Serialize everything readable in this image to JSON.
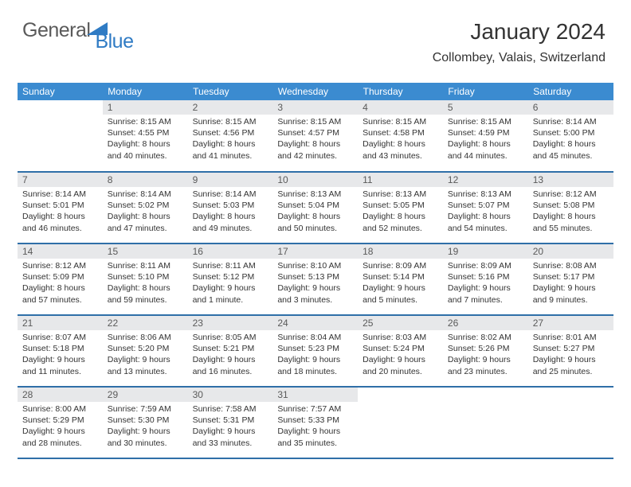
{
  "logo": {
    "text1": "General",
    "text2": "Blue",
    "shape_color": "#2f7bc4",
    "text1_color": "#5a5a5a"
  },
  "header": {
    "title": "January 2024",
    "location": "Collombey, Valais, Switzerland"
  },
  "style": {
    "header_bg": "#3b8bd0",
    "header_text": "#ffffff",
    "border_color": "#2f6fa8",
    "daynum_bg": "#e7e8ea",
    "daynum_color": "#5a5a5a",
    "body_text": "#333333",
    "background": "#ffffff",
    "th_fontsize": 12,
    "daynum_fontsize": 12,
    "data_fontsize": 10.5,
    "title_fontsize": 28,
    "location_fontsize": 16
  },
  "weekdays": [
    "Sunday",
    "Monday",
    "Tuesday",
    "Wednesday",
    "Thursday",
    "Friday",
    "Saturday"
  ],
  "grid_start_offset": 1,
  "days": [
    {
      "n": 1,
      "sunrise": "8:15 AM",
      "sunset": "4:55 PM",
      "daylight": "8 hours and 40 minutes."
    },
    {
      "n": 2,
      "sunrise": "8:15 AM",
      "sunset": "4:56 PM",
      "daylight": "8 hours and 41 minutes."
    },
    {
      "n": 3,
      "sunrise": "8:15 AM",
      "sunset": "4:57 PM",
      "daylight": "8 hours and 42 minutes."
    },
    {
      "n": 4,
      "sunrise": "8:15 AM",
      "sunset": "4:58 PM",
      "daylight": "8 hours and 43 minutes."
    },
    {
      "n": 5,
      "sunrise": "8:15 AM",
      "sunset": "4:59 PM",
      "daylight": "8 hours and 44 minutes."
    },
    {
      "n": 6,
      "sunrise": "8:14 AM",
      "sunset": "5:00 PM",
      "daylight": "8 hours and 45 minutes."
    },
    {
      "n": 7,
      "sunrise": "8:14 AM",
      "sunset": "5:01 PM",
      "daylight": "8 hours and 46 minutes."
    },
    {
      "n": 8,
      "sunrise": "8:14 AM",
      "sunset": "5:02 PM",
      "daylight": "8 hours and 47 minutes."
    },
    {
      "n": 9,
      "sunrise": "8:14 AM",
      "sunset": "5:03 PM",
      "daylight": "8 hours and 49 minutes."
    },
    {
      "n": 10,
      "sunrise": "8:13 AM",
      "sunset": "5:04 PM",
      "daylight": "8 hours and 50 minutes."
    },
    {
      "n": 11,
      "sunrise": "8:13 AM",
      "sunset": "5:05 PM",
      "daylight": "8 hours and 52 minutes."
    },
    {
      "n": 12,
      "sunrise": "8:13 AM",
      "sunset": "5:07 PM",
      "daylight": "8 hours and 54 minutes."
    },
    {
      "n": 13,
      "sunrise": "8:12 AM",
      "sunset": "5:08 PM",
      "daylight": "8 hours and 55 minutes."
    },
    {
      "n": 14,
      "sunrise": "8:12 AM",
      "sunset": "5:09 PM",
      "daylight": "8 hours and 57 minutes."
    },
    {
      "n": 15,
      "sunrise": "8:11 AM",
      "sunset": "5:10 PM",
      "daylight": "8 hours and 59 minutes."
    },
    {
      "n": 16,
      "sunrise": "8:11 AM",
      "sunset": "5:12 PM",
      "daylight": "9 hours and 1 minute."
    },
    {
      "n": 17,
      "sunrise": "8:10 AM",
      "sunset": "5:13 PM",
      "daylight": "9 hours and 3 minutes."
    },
    {
      "n": 18,
      "sunrise": "8:09 AM",
      "sunset": "5:14 PM",
      "daylight": "9 hours and 5 minutes."
    },
    {
      "n": 19,
      "sunrise": "8:09 AM",
      "sunset": "5:16 PM",
      "daylight": "9 hours and 7 minutes."
    },
    {
      "n": 20,
      "sunrise": "8:08 AM",
      "sunset": "5:17 PM",
      "daylight": "9 hours and 9 minutes."
    },
    {
      "n": 21,
      "sunrise": "8:07 AM",
      "sunset": "5:18 PM",
      "daylight": "9 hours and 11 minutes."
    },
    {
      "n": 22,
      "sunrise": "8:06 AM",
      "sunset": "5:20 PM",
      "daylight": "9 hours and 13 minutes."
    },
    {
      "n": 23,
      "sunrise": "8:05 AM",
      "sunset": "5:21 PM",
      "daylight": "9 hours and 16 minutes."
    },
    {
      "n": 24,
      "sunrise": "8:04 AM",
      "sunset": "5:23 PM",
      "daylight": "9 hours and 18 minutes."
    },
    {
      "n": 25,
      "sunrise": "8:03 AM",
      "sunset": "5:24 PM",
      "daylight": "9 hours and 20 minutes."
    },
    {
      "n": 26,
      "sunrise": "8:02 AM",
      "sunset": "5:26 PM",
      "daylight": "9 hours and 23 minutes."
    },
    {
      "n": 27,
      "sunrise": "8:01 AM",
      "sunset": "5:27 PM",
      "daylight": "9 hours and 25 minutes."
    },
    {
      "n": 28,
      "sunrise": "8:00 AM",
      "sunset": "5:29 PM",
      "daylight": "9 hours and 28 minutes."
    },
    {
      "n": 29,
      "sunrise": "7:59 AM",
      "sunset": "5:30 PM",
      "daylight": "9 hours and 30 minutes."
    },
    {
      "n": 30,
      "sunrise": "7:58 AM",
      "sunset": "5:31 PM",
      "daylight": "9 hours and 33 minutes."
    },
    {
      "n": 31,
      "sunrise": "7:57 AM",
      "sunset": "5:33 PM",
      "daylight": "9 hours and 35 minutes."
    }
  ],
  "labels": {
    "sunrise": "Sunrise:",
    "sunset": "Sunset:",
    "daylight": "Daylight:"
  }
}
